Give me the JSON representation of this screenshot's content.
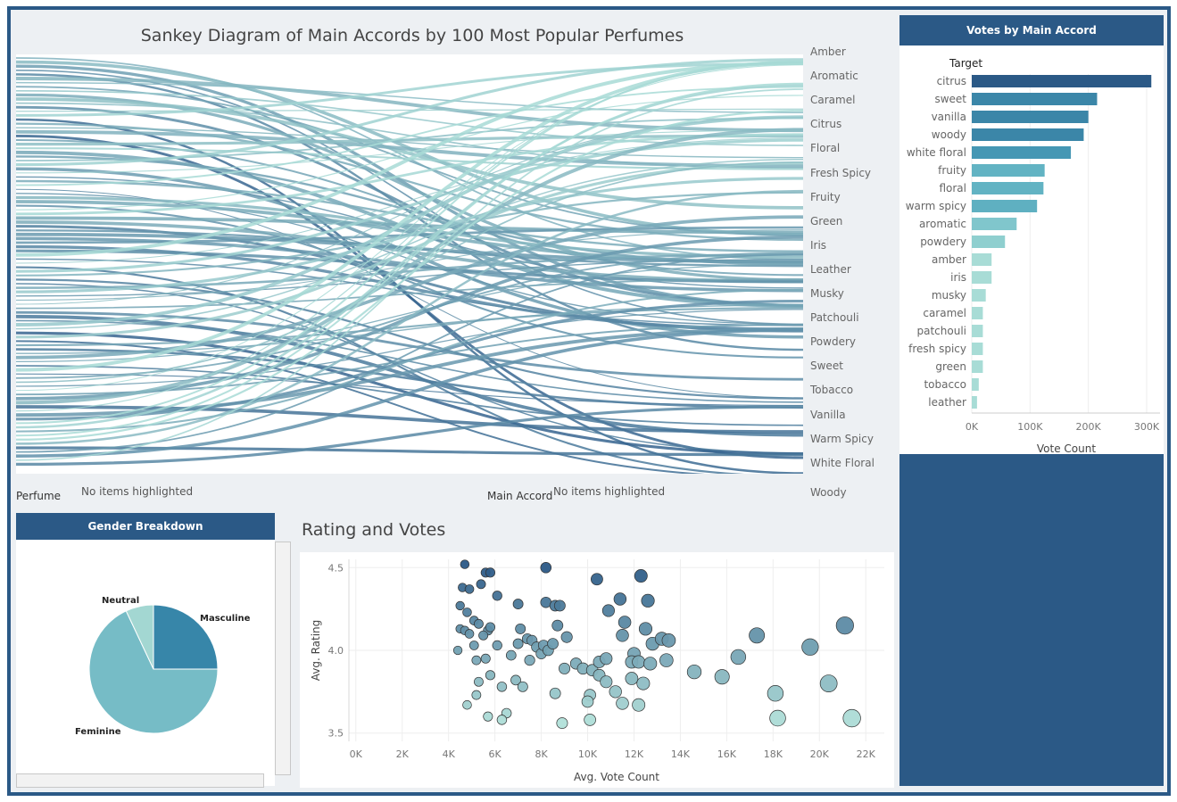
{
  "sankey": {
    "title": "Sankey Diagram of Main Accords by 100 Most Popular Perfumes",
    "targets": [
      "Amber",
      "Aromatic",
      "Caramel",
      "Citrus",
      "Floral",
      "Fresh Spicy",
      "Fruity",
      "Green",
      "Iris",
      "Leather",
      "Musky",
      "Patchouli",
      "Powdery",
      "Sweet",
      "Tobacco",
      "Vanilla",
      "Warm Spicy",
      "White Floral",
      "Woody"
    ],
    "source_label": "Perfume",
    "source_note": "No items highlighted",
    "target_label": "Main Accord",
    "target_note": "No items highlighted",
    "color_light": "#a8dad6",
    "color_dark": "#2e5c8a"
  },
  "votes": {
    "header": "Votes by Main Accord",
    "col_header": "Target",
    "x_label": "Vote Count",
    "ticks": [
      "0K",
      "100K",
      "200K",
      "300K"
    ]
  },
  "gender": {
    "header": "Gender Breakdown",
    "labels": {
      "neutral": "Neutral",
      "masculine": "Masculine",
      "feminine": "Feminine"
    }
  },
  "scatter": {
    "title": "Rating and Votes"
  },
  "chart_data": [
    {
      "type": "bar",
      "orientation": "horizontal",
      "title": "Votes by Main Accord",
      "categories": [
        "citrus",
        "sweet",
        "vanilla",
        "woody",
        "white floral",
        "fruity",
        "floral",
        "warm spicy",
        "aromatic",
        "powdery",
        "amber",
        "iris",
        "musky",
        "caramel",
        "patchouli",
        "fresh spicy",
        "green",
        "tobacco",
        "leather"
      ],
      "values": [
        308000,
        215000,
        200000,
        192000,
        170000,
        125000,
        123000,
        112000,
        77000,
        57000,
        34000,
        34000,
        24000,
        19000,
        19000,
        19000,
        19000,
        12000,
        9000
      ],
      "xlabel": "Vote Count",
      "xlim": [
        0,
        320000
      ],
      "colors": [
        "#2b5986",
        "#3b86a8",
        "#3b86a8",
        "#3b86a8",
        "#4597b4",
        "#62b3c3",
        "#62b3c3",
        "#5fb0c1",
        "#80c6cc",
        "#8fcfcf",
        "#a8dcd6",
        "#a8dcd6",
        "#a8dcd6",
        "#a8dcd6",
        "#a8dcd6",
        "#a8dcd6",
        "#a8dcd6",
        "#a8dcd6",
        "#a8dcd6"
      ]
    },
    {
      "type": "pie",
      "title": "Gender Breakdown",
      "labels": [
        "Masculine",
        "Feminine",
        "Neutral"
      ],
      "values": [
        25,
        68,
        7
      ],
      "colors": [
        "#3786a9",
        "#76bcc6",
        "#a3d7d2"
      ]
    },
    {
      "type": "scatter",
      "title": "Rating and Votes",
      "xlabel": "Avg. Vote Count",
      "ylabel": "Avg. Rating",
      "xlim": [
        -300,
        22800
      ],
      "ylim": [
        3.45,
        4.55
      ],
      "xticks": [
        0,
        2000,
        4000,
        6000,
        8000,
        10000,
        12000,
        14000,
        16000,
        18000,
        20000,
        22000
      ],
      "xtick_labels": [
        "0K",
        "2K",
        "4K",
        "6K",
        "8K",
        "10K",
        "12K",
        "14K",
        "16K",
        "18K",
        "20K",
        "22K"
      ],
      "yticks": [
        3.5,
        4.0,
        4.5
      ],
      "ytick_labels": [
        "3.5",
        "4.0",
        "4.5"
      ],
      "points": [
        [
          4700,
          4.52
        ],
        [
          5600,
          4.47
        ],
        [
          5800,
          4.47
        ],
        [
          8200,
          4.5
        ],
        [
          10400,
          4.43
        ],
        [
          12300,
          4.45
        ],
        [
          4600,
          4.38
        ],
        [
          4900,
          4.37
        ],
        [
          5400,
          4.4
        ],
        [
          6100,
          4.33
        ],
        [
          7000,
          4.28
        ],
        [
          8200,
          4.29
        ],
        [
          8600,
          4.27
        ],
        [
          8800,
          4.27
        ],
        [
          11400,
          4.31
        ],
        [
          12600,
          4.3
        ],
        [
          10900,
          4.24
        ],
        [
          4500,
          4.27
        ],
        [
          4800,
          4.23
        ],
        [
          4500,
          4.13
        ],
        [
          4700,
          4.12
        ],
        [
          4900,
          4.1
        ],
        [
          5100,
          4.18
        ],
        [
          5300,
          4.16
        ],
        [
          5700,
          4.12
        ],
        [
          4400,
          4.0
        ],
        [
          5100,
          4.03
        ],
        [
          5500,
          4.09
        ],
        [
          5800,
          4.14
        ],
        [
          5200,
          3.94
        ],
        [
          5600,
          3.95
        ],
        [
          6100,
          4.03
        ],
        [
          6700,
          3.97
        ],
        [
          7000,
          4.04
        ],
        [
          7100,
          4.13
        ],
        [
          7400,
          4.07
        ],
        [
          7600,
          4.06
        ],
        [
          7800,
          4.02
        ],
        [
          7500,
          3.94
        ],
        [
          8000,
          3.98
        ],
        [
          8100,
          4.03
        ],
        [
          8300,
          4.0
        ],
        [
          8500,
          4.04
        ],
        [
          8700,
          4.15
        ],
        [
          9100,
          4.08
        ],
        [
          9000,
          3.89
        ],
        [
          9500,
          3.92
        ],
        [
          9800,
          3.89
        ],
        [
          10200,
          3.88
        ],
        [
          10500,
          3.93
        ],
        [
          10800,
          3.95
        ],
        [
          11500,
          4.09
        ],
        [
          11600,
          4.17
        ],
        [
          12000,
          3.98
        ],
        [
          12500,
          4.13
        ],
        [
          12800,
          4.04
        ],
        [
          13200,
          4.07
        ],
        [
          13500,
          4.06
        ],
        [
          11900,
          3.93
        ],
        [
          12200,
          3.93
        ],
        [
          12700,
          3.92
        ],
        [
          13400,
          3.94
        ],
        [
          14600,
          3.87
        ],
        [
          15800,
          3.84
        ],
        [
          16500,
          3.96
        ],
        [
          17300,
          4.09
        ],
        [
          19600,
          4.02
        ],
        [
          21100,
          4.15
        ],
        [
          5300,
          3.81
        ],
        [
          5800,
          3.85
        ],
        [
          6300,
          3.78
        ],
        [
          6900,
          3.82
        ],
        [
          7200,
          3.78
        ],
        [
          8600,
          3.74
        ],
        [
          10100,
          3.73
        ],
        [
          10500,
          3.85
        ],
        [
          10800,
          3.81
        ],
        [
          11200,
          3.75
        ],
        [
          11900,
          3.83
        ],
        [
          12400,
          3.8
        ],
        [
          4800,
          3.67
        ],
        [
          5200,
          3.73
        ],
        [
          6500,
          3.62
        ],
        [
          8900,
          3.56
        ],
        [
          10000,
          3.69
        ],
        [
          10100,
          3.58
        ],
        [
          11500,
          3.68
        ],
        [
          12200,
          3.67
        ],
        [
          5700,
          3.6
        ],
        [
          6300,
          3.58
        ],
        [
          18100,
          3.74
        ],
        [
          18200,
          3.59
        ],
        [
          20400,
          3.8
        ],
        [
          21400,
          3.59
        ]
      ]
    }
  ]
}
